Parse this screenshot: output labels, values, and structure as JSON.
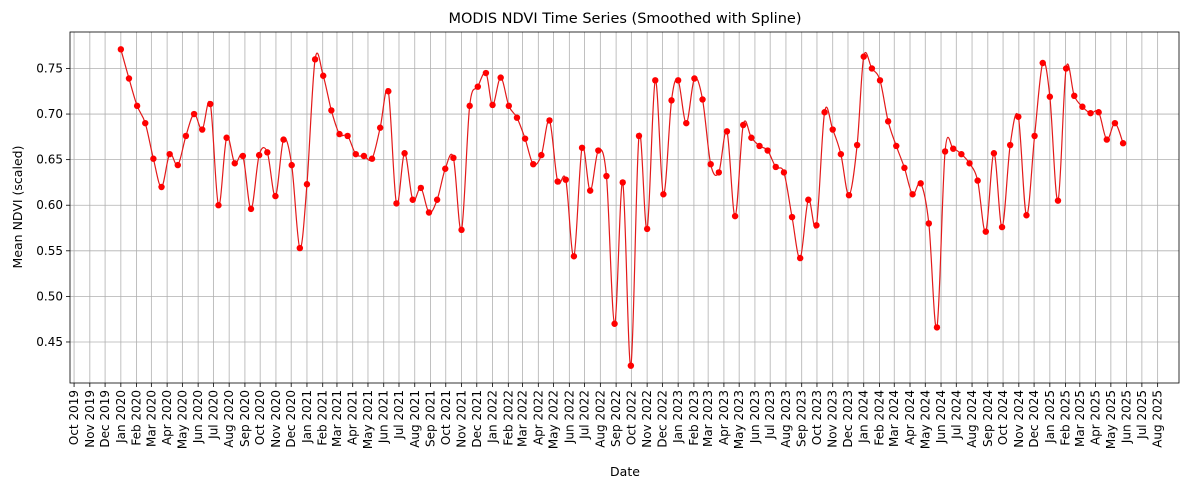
{
  "chart_data": {
    "type": "line",
    "title": "MODIS NDVI Time Series (Smoothed with Spline)",
    "xlabel": "Date",
    "ylabel": "Mean NDVI (scaled)",
    "x_axis_type": "date",
    "xlim": [
      "2019-09-23",
      "2025-09-12"
    ],
    "ylim": [
      0.405,
      0.79
    ],
    "y_ticks": [
      0.45,
      0.5,
      0.55,
      0.6,
      0.65,
      0.7,
      0.75
    ],
    "y_tick_labels": [
      "0.45",
      "0.50",
      "0.55",
      "0.60",
      "0.65",
      "0.70",
      "0.75"
    ],
    "x_ticks": [
      "2019-10-01",
      "2019-11-01",
      "2019-12-01",
      "2020-01-01",
      "2020-02-01",
      "2020-03-01",
      "2020-04-01",
      "2020-05-01",
      "2020-06-01",
      "2020-07-01",
      "2020-08-01",
      "2020-09-01",
      "2020-10-01",
      "2020-11-01",
      "2020-12-01",
      "2021-01-01",
      "2021-02-01",
      "2021-03-01",
      "2021-04-01",
      "2021-05-01",
      "2021-06-01",
      "2021-07-01",
      "2021-08-01",
      "2021-09-01",
      "2021-10-01",
      "2021-11-01",
      "2021-12-01",
      "2022-01-01",
      "2022-02-01",
      "2022-03-01",
      "2022-04-01",
      "2022-05-01",
      "2022-06-01",
      "2022-07-01",
      "2022-08-01",
      "2022-09-01",
      "2022-10-01",
      "2022-11-01",
      "2022-12-01",
      "2023-01-01",
      "2023-02-01",
      "2023-03-01",
      "2023-04-01",
      "2023-05-01",
      "2023-06-01",
      "2023-07-01",
      "2023-08-01",
      "2023-09-01",
      "2023-10-01",
      "2023-11-01",
      "2023-12-01",
      "2024-01-01",
      "2024-02-01",
      "2024-03-01",
      "2024-04-01",
      "2024-05-01",
      "2024-06-01",
      "2024-07-01",
      "2024-08-01",
      "2024-09-01",
      "2024-10-01",
      "2024-11-01",
      "2024-12-01",
      "2025-01-01",
      "2025-02-01",
      "2025-03-01",
      "2025-04-01",
      "2025-05-01",
      "2025-06-01",
      "2025-07-01",
      "2025-08-01"
    ],
    "x_tick_labels": [
      "Oct 2019",
      "Nov 2019",
      "Dec 2019",
      "Jan 2020",
      "Feb 2020",
      "Mar 2020",
      "Apr 2020",
      "May 2020",
      "Jun 2020",
      "Jul 2020",
      "Aug 2020",
      "Sep 2020",
      "Oct 2020",
      "Nov 2020",
      "Dec 2020",
      "Jan 2021",
      "Feb 2021",
      "Mar 2021",
      "Apr 2021",
      "May 2021",
      "Jun 2021",
      "Jul 2021",
      "Aug 2021",
      "Sep 2021",
      "Oct 2021",
      "Nov 2021",
      "Dec 2021",
      "Jan 2022",
      "Feb 2022",
      "Mar 2022",
      "Apr 2022",
      "May 2022",
      "Jun 2022",
      "Jul 2022",
      "Aug 2022",
      "Sep 2022",
      "Oct 2022",
      "Nov 2022",
      "Dec 2022",
      "Jan 2023",
      "Feb 2023",
      "Mar 2023",
      "Apr 2023",
      "May 2023",
      "Jun 2023",
      "Jul 2023",
      "Aug 2023",
      "Sep 2023",
      "Oct 2023",
      "Nov 2023",
      "Dec 2023",
      "Jan 2024",
      "Feb 2024",
      "Mar 2024",
      "Apr 2024",
      "May 2024",
      "Jun 2024",
      "Jul 2024",
      "Aug 2024",
      "Sep 2024",
      "Oct 2024",
      "Nov 2024",
      "Dec 2024",
      "Jan 2025",
      "Feb 2025",
      "Mar 2025",
      "Apr 2025",
      "May 2025",
      "Jun 2025",
      "Jul 2025",
      "Aug 2025"
    ],
    "grid": true,
    "color": "#ff0000",
    "line_color": "#e31a1a",
    "series": [
      {
        "x": [
          "2020-01-01",
          "2020-01-17",
          "2020-02-02",
          "2020-02-18",
          "2020-03-05",
          "2020-03-21",
          "2020-04-06",
          "2020-04-22",
          "2020-05-08",
          "2020-05-24",
          "2020-06-09",
          "2020-06-25",
          "2020-07-11",
          "2020-07-27",
          "2020-08-12",
          "2020-08-28",
          "2020-09-13",
          "2020-09-29",
          "2020-10-15",
          "2020-10-31",
          "2020-11-16",
          "2020-12-02",
          "2020-12-18",
          "2021-01-01",
          "2021-01-17",
          "2021-02-02",
          "2021-02-18",
          "2021-03-06",
          "2021-03-22",
          "2021-04-07",
          "2021-04-23",
          "2021-05-09",
          "2021-05-25",
          "2021-06-10",
          "2021-06-26",
          "2021-07-12",
          "2021-07-28",
          "2021-08-13",
          "2021-08-29",
          "2021-09-14",
          "2021-09-30",
          "2021-10-16",
          "2021-11-01",
          "2021-11-17",
          "2021-12-03",
          "2021-12-19",
          "2022-01-01",
          "2022-01-17",
          "2022-02-02",
          "2022-02-18",
          "2022-03-06",
          "2022-03-22",
          "2022-04-07",
          "2022-04-23",
          "2022-05-09",
          "2022-05-25",
          "2022-06-10",
          "2022-06-26",
          "2022-07-12",
          "2022-07-28",
          "2022-08-13",
          "2022-08-29",
          "2022-09-14",
          "2022-09-30",
          "2022-10-16",
          "2022-11-01",
          "2022-11-17",
          "2022-12-03",
          "2022-12-19",
          "2023-01-01",
          "2023-01-17",
          "2023-02-02",
          "2023-02-18",
          "2023-03-06",
          "2023-03-22",
          "2023-04-07",
          "2023-04-23",
          "2023-05-09",
          "2023-05-25",
          "2023-06-10",
          "2023-06-26",
          "2023-07-12",
          "2023-07-28",
          "2023-08-13",
          "2023-08-29",
          "2023-09-14",
          "2023-09-30",
          "2023-10-16",
          "2023-11-01",
          "2023-11-17",
          "2023-12-03",
          "2023-12-19",
          "2024-01-01",
          "2024-01-17",
          "2024-02-02",
          "2024-02-18",
          "2024-03-05",
          "2024-03-21",
          "2024-04-06",
          "2024-04-22",
          "2024-05-08",
          "2024-05-24",
          "2024-06-09",
          "2024-06-25",
          "2024-07-11",
          "2024-07-27",
          "2024-08-12",
          "2024-08-28",
          "2024-09-13",
          "2024-09-29",
          "2024-10-15",
          "2024-10-31",
          "2024-11-16",
          "2024-12-02",
          "2024-12-18",
          "2025-01-01",
          "2025-01-17",
          "2025-02-02",
          "2025-02-18",
          "2025-03-06",
          "2025-03-22",
          "2025-04-07",
          "2025-04-23",
          "2025-05-09",
          "2025-05-25"
        ],
        "y": [
          0.771,
          0.739,
          0.709,
          0.69,
          0.651,
          0.62,
          0.656,
          0.644,
          0.676,
          0.7,
          0.683,
          0.711,
          0.6,
          0.674,
          0.646,
          0.654,
          0.596,
          0.655,
          0.658,
          0.61,
          0.672,
          0.644,
          0.553,
          0.623,
          0.76,
          0.742,
          0.704,
          0.678,
          0.676,
          0.656,
          0.654,
          0.651,
          0.685,
          0.725,
          0.602,
          0.657,
          0.606,
          0.619,
          0.592,
          0.606,
          0.64,
          0.652,
          0.573,
          0.709,
          0.73,
          0.745,
          0.71,
          0.74,
          0.709,
          0.696,
          0.673,
          0.645,
          0.655,
          0.693,
          0.626,
          0.628,
          0.544,
          0.663,
          0.616,
          0.66,
          0.632,
          0.47,
          0.625,
          0.424,
          0.676,
          0.574,
          0.737,
          0.612,
          0.715,
          0.737,
          0.69,
          0.739,
          0.716,
          0.645,
          0.636,
          0.681,
          0.588,
          0.688,
          0.674,
          0.665,
          0.66,
          0.642,
          0.636,
          0.587,
          0.542,
          0.606,
          0.578,
          0.702,
          0.683,
          0.656,
          0.611,
          0.666,
          0.763,
          0.75,
          0.737,
          0.692,
          0.665,
          0.641,
          0.612,
          0.624,
          0.58,
          0.466,
          0.659,
          0.662,
          0.656,
          0.646,
          0.627,
          0.571,
          0.657,
          0.576,
          0.666,
          0.697,
          0.589,
          0.676,
          0.756,
          0.719,
          0.605,
          0.75,
          0.72,
          0.708,
          0.701,
          0.702,
          0.672,
          0.69,
          0.668
        ]
      }
    ]
  }
}
